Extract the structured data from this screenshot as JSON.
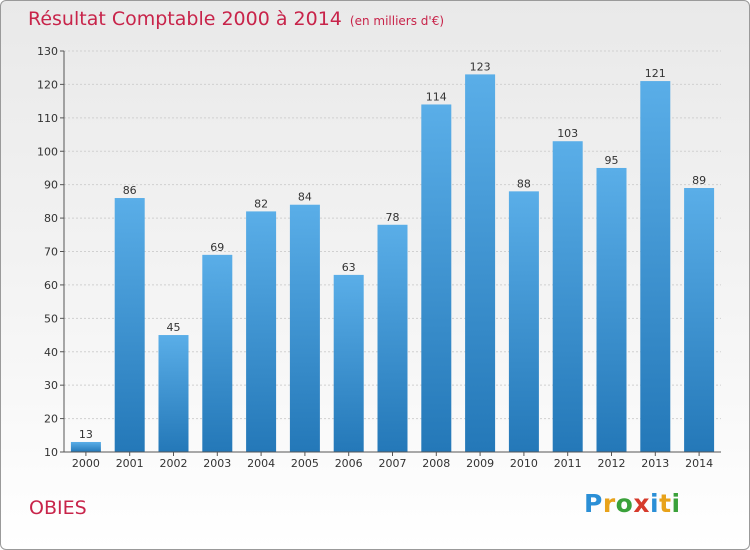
{
  "title": "Résultat Comptable 2000 à 2014",
  "subtitle": "(en milliers d'€)",
  "commune": "OBIES",
  "logo": {
    "letters": [
      "P",
      "r",
      "o",
      "x",
      "i",
      "t",
      "i"
    ],
    "colors": [
      "#2b8fd6",
      "#e8a21a",
      "#3aa13a",
      "#d63a2b",
      "#2b8fd6",
      "#e8a21a",
      "#3aa13a"
    ]
  },
  "colors": {
    "title": "#c8244a",
    "bar_top": "#5aaee8",
    "bar_bottom": "#2478b8"
  },
  "chart_data": {
    "type": "bar",
    "title": "Résultat Comptable 2000 à 2014",
    "subtitle": "(en milliers d'€)",
    "xlabel": "",
    "ylabel": "",
    "categories": [
      "2000",
      "2001",
      "2002",
      "2003",
      "2004",
      "2005",
      "2006",
      "2007",
      "2008",
      "2009",
      "2010",
      "2011",
      "2012",
      "2013",
      "2014"
    ],
    "values": [
      13,
      86,
      45,
      69,
      82,
      84,
      63,
      78,
      114,
      123,
      88,
      103,
      95,
      121,
      89
    ],
    "ylim": [
      10,
      130
    ],
    "yticks": [
      10,
      20,
      30,
      40,
      50,
      60,
      70,
      80,
      90,
      100,
      110,
      120,
      130
    ],
    "grid": true,
    "legend": "none"
  }
}
